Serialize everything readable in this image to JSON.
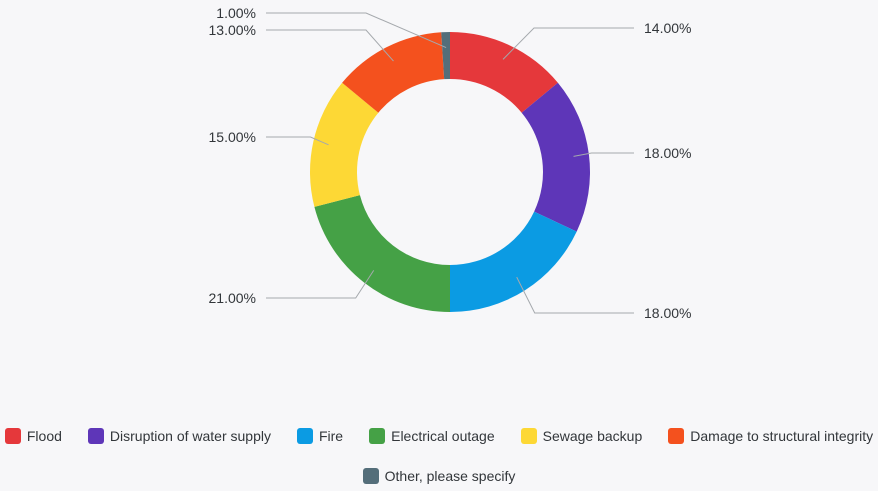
{
  "chart_data": {
    "type": "donut",
    "title": "",
    "series": [
      {
        "name": "Flood",
        "value": 14.0,
        "label": "14.00%",
        "color": "#e5383b"
      },
      {
        "name": "Disruption of water supply",
        "value": 18.0,
        "label": "18.00%",
        "color": "#5e36b8"
      },
      {
        "name": "Fire",
        "value": 18.0,
        "label": "18.00%",
        "color": "#0b9be3"
      },
      {
        "name": "Electrical outage",
        "value": 21.0,
        "label": "21.00%",
        "color": "#45a146"
      },
      {
        "name": "Sewage backup",
        "value": 15.0,
        "label": "15.00%",
        "color": "#fdd835"
      },
      {
        "name": "Damage to structural integrity",
        "value": 13.0,
        "label": "13.00%",
        "color": "#f4511e"
      },
      {
        "name": "Other, please specify",
        "value": 1.0,
        "label": "1.00%",
        "color": "#546e7a"
      }
    ],
    "legend_position": "bottom"
  }
}
